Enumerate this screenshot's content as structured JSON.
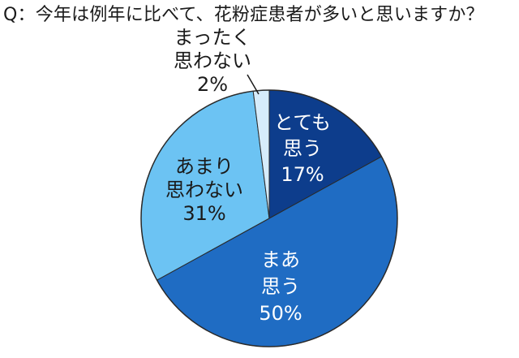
{
  "chart_data": {
    "type": "pie",
    "title": "Q：今年は例年に比べて、花粉症患者が多いと思いますか？",
    "slices": [
      {
        "label": [
          "とても",
          "思う"
        ],
        "value": 17,
        "value_text": "17%",
        "color": "#0d3d8c",
        "text_color": "#ffffff"
      },
      {
        "label": [
          "まあ",
          "思う"
        ],
        "value": 50,
        "value_text": "50%",
        "color": "#1f6cc3",
        "text_color": "#ffffff"
      },
      {
        "label": [
          "あまり",
          "思わない"
        ],
        "value": 31,
        "value_text": "31%",
        "color": "#6cc3f3",
        "text_color": "#1a1a1a"
      },
      {
        "label": [
          "まったく",
          "思わない"
        ],
        "value": 2,
        "value_text": "2%",
        "color": "#d6ecfb",
        "text_color": "#1a1a1a"
      }
    ],
    "start_angle_deg": 0,
    "direction": "clockwise",
    "legend": "none",
    "outline_color": "#ffffff"
  }
}
